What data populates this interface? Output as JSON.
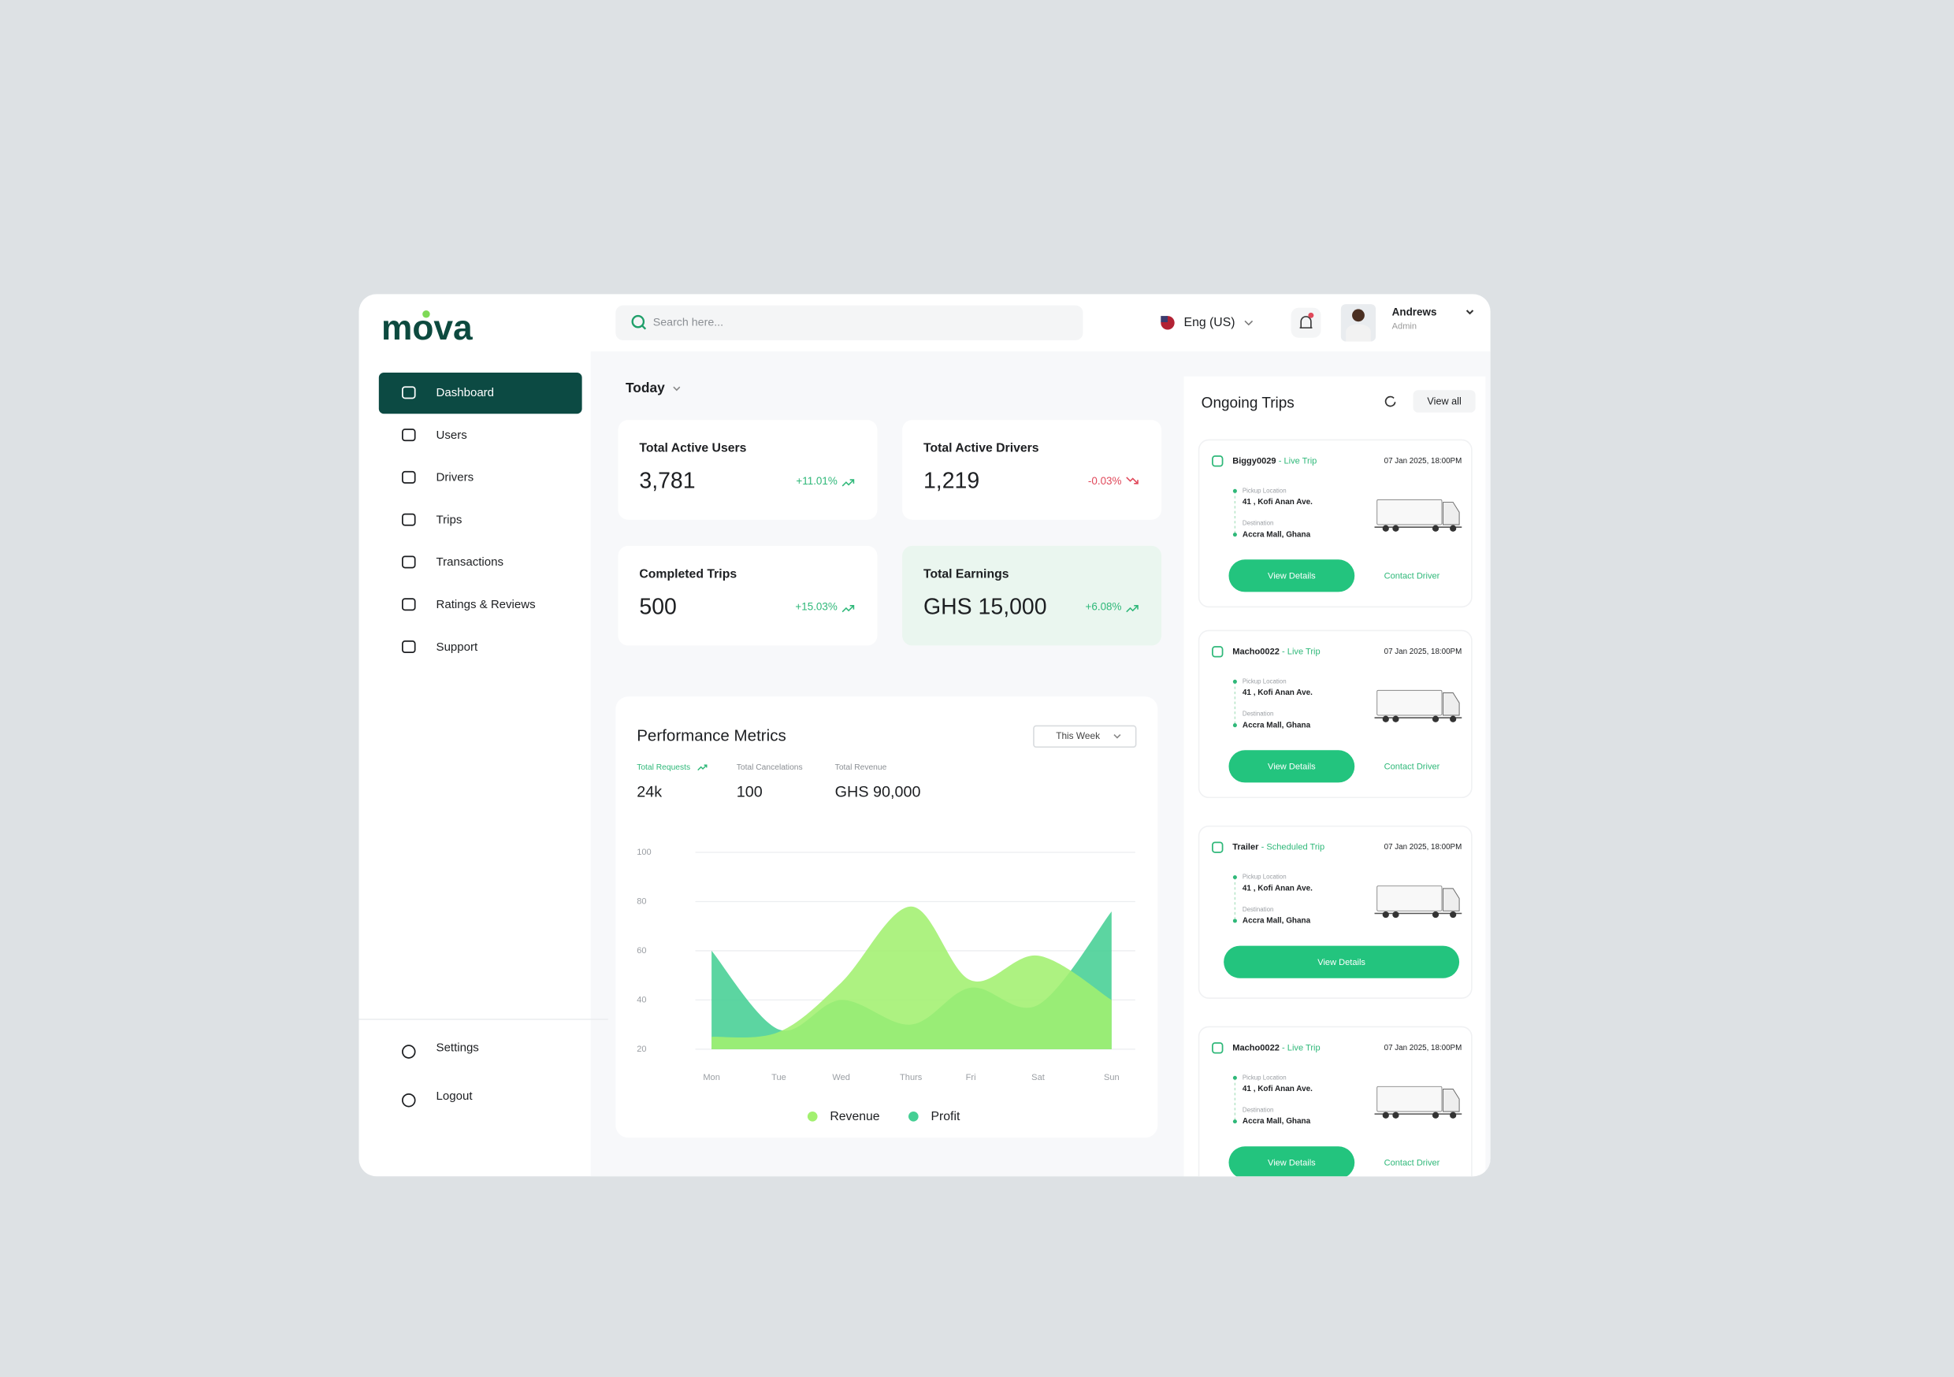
{
  "brand": "mova",
  "search_placeholder": "Search here...",
  "language": "Eng (US)",
  "user": {
    "name": "Andrews",
    "role": "Admin"
  },
  "nav": [
    "Dashboard",
    "Users",
    "Drivers",
    "Trips",
    "Transactions",
    "Ratings & Reviews",
    "Support"
  ],
  "nav_bottom": [
    "Settings",
    "Logout"
  ],
  "period": "Today",
  "stats": [
    {
      "label": "Total Active Users",
      "value": "3,781",
      "change": "+11.01%",
      "trend": "up"
    },
    {
      "label": "Total Active Drivers",
      "value": "1,219",
      "change": "-0.03%",
      "trend": "down"
    },
    {
      "label": "Completed Trips",
      "value": "500",
      "change": "+15.03%",
      "trend": "up"
    },
    {
      "label": "Total Earnings",
      "value": "GHS 15,000",
      "change": "+6.08%",
      "trend": "up"
    }
  ],
  "performance": {
    "title": "Performance Metrics",
    "range": "This Week",
    "metrics": [
      {
        "label": "Total Requests",
        "value": "24k"
      },
      {
        "label": "Total Cancelations",
        "value": "100"
      },
      {
        "label": "Total Revenue",
        "value": "GHS 90,000"
      }
    ]
  },
  "chart_data": {
    "type": "area",
    "categories": [
      "Mon",
      "Tue",
      "Wed",
      "Thurs",
      "Fri",
      "Sat",
      "Sun"
    ],
    "series": [
      {
        "name": "Profit",
        "color": "#45cf94",
        "values": [
          60,
          28,
          40,
          30,
          45,
          38,
          76
        ]
      },
      {
        "name": "Revenue",
        "color": "#a2f06f",
        "values": [
          25,
          27,
          47,
          78,
          48,
          58,
          40
        ]
      }
    ],
    "ylim": [
      20,
      100
    ],
    "yticks": [
      20,
      40,
      60,
      80,
      100
    ],
    "grid": true,
    "legend": "bottom"
  },
  "trips": {
    "title": "Ongoing Trips",
    "view_all": "View all",
    "items": [
      {
        "id": "Biggy0029",
        "status": "- Live Trip",
        "time": "07 Jan 2025, 18:00PM",
        "pickup_label": "Pickup Location",
        "pickup": "41 , Kofi Anan Ave.",
        "destination_label": "Destination",
        "destination": "Accra Mall, Ghana",
        "actions": [
          "View Details",
          "Contact Driver"
        ]
      },
      {
        "id": "Macho0022",
        "status": "- Live Trip",
        "time": "07 Jan 2025, 18:00PM",
        "pickup_label": "Pickup Location",
        "pickup": "41 , Kofi Anan Ave.",
        "destination_label": "Destination",
        "destination": "Accra Mall, Ghana",
        "actions": [
          "View Details",
          "Contact Driver"
        ]
      },
      {
        "id": "Trailer",
        "status": "- Scheduled Trip",
        "time": "07 Jan 2025, 18:00PM",
        "pickup_label": "Pickup Location",
        "pickup": "41 , Kofi Anan Ave.",
        "destination_label": "Destination",
        "destination": "Accra Mall, Ghana",
        "actions": [
          "View Details"
        ]
      },
      {
        "id": "Macho0022",
        "status": "- Live Trip",
        "time": "07 Jan 2025, 18:00PM",
        "pickup_label": "Pickup Location",
        "pickup": "41 , Kofi Anan Ave.",
        "destination_label": "Destination",
        "destination": "Accra Mall, Ghana",
        "actions": [
          "View Details",
          "Contact Driver"
        ]
      }
    ]
  }
}
